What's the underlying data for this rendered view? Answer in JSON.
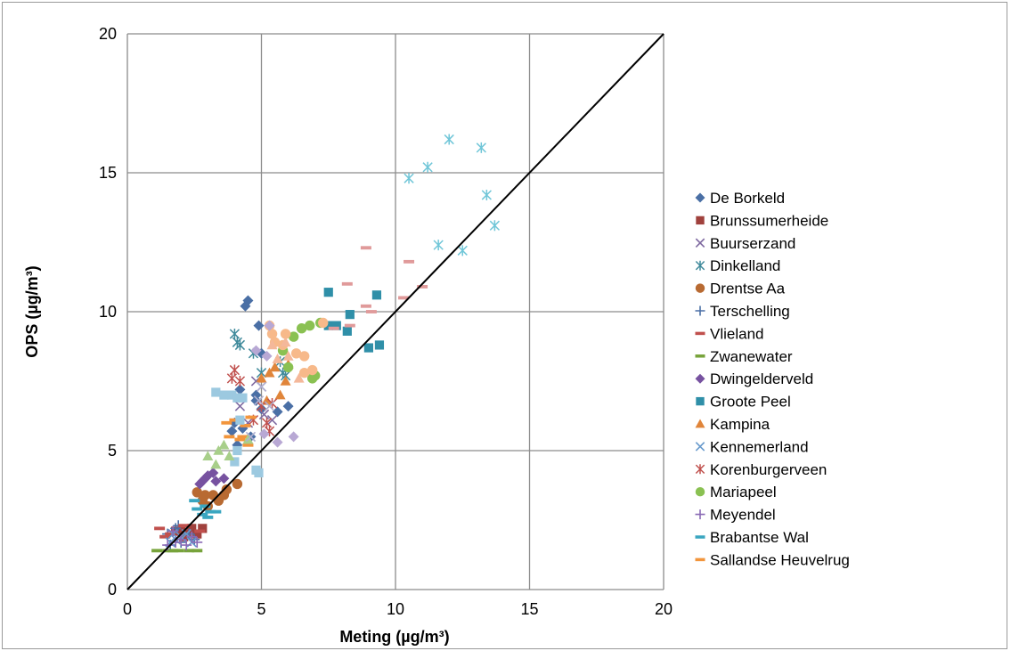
{
  "chart_data": {
    "type": "scatter",
    "title": "",
    "xlabel": "Meting (µg/m³)",
    "ylabel": "OPS (µg/m³)",
    "xlim": [
      0,
      20
    ],
    "ylim": [
      0,
      20
    ],
    "x_ticks": [
      "0",
      "5",
      "10",
      "15",
      "20"
    ],
    "y_ticks": [
      "0",
      "5",
      "10",
      "15",
      "20"
    ],
    "grid": true,
    "legend_position": "right",
    "reference_line": {
      "x": [
        0,
        20
      ],
      "y": [
        0,
        20
      ],
      "color": "#000000"
    },
    "series": [
      {
        "name": "De Borkeld",
        "marker": "diamond",
        "color": "#4a6fa5",
        "points": [
          [
            4.5,
            10.4
          ],
          [
            4.4,
            10.2
          ],
          [
            4.9,
            9.5
          ],
          [
            5.0,
            8.5
          ],
          [
            4.2,
            7.2
          ],
          [
            4.8,
            7.0
          ],
          [
            4.0,
            6.0
          ],
          [
            3.9,
            5.7
          ],
          [
            4.3,
            5.8
          ],
          [
            4.6,
            5.5
          ],
          [
            5.0,
            6.5
          ],
          [
            5.6,
            6.4
          ],
          [
            6.0,
            6.6
          ],
          [
            4.1,
            5.2
          ],
          [
            4.8,
            6.8
          ]
        ]
      },
      {
        "name": "Brunssumerheide",
        "marker": "square",
        "color": "#a0413d",
        "points": [
          [
            2.0,
            2.1
          ],
          [
            2.4,
            2.2
          ],
          [
            2.8,
            2.2
          ],
          [
            2.2,
            2.0
          ],
          [
            1.8,
            2.1
          ],
          [
            2.6,
            2.0
          ],
          [
            2.1,
            1.9
          ]
        ]
      },
      {
        "name": "Buurserzand",
        "marker": "x",
        "color": "#7f6aa1",
        "points": [
          [
            4.8,
            7.5
          ],
          [
            5.1,
            6.3
          ],
          [
            5.4,
            6.1
          ],
          [
            4.5,
            6.0
          ],
          [
            4.2,
            6.6
          ],
          [
            5.0,
            7.3
          ]
        ]
      },
      {
        "name": "Dinkelland",
        "marker": "star",
        "color": "#3f8a9b",
        "points": [
          [
            4.0,
            9.2
          ],
          [
            4.1,
            8.9
          ],
          [
            4.2,
            8.8
          ],
          [
            4.7,
            8.5
          ],
          [
            5.0,
            7.8
          ],
          [
            5.7,
            8.2
          ],
          [
            5.8,
            7.8
          ],
          [
            5.9,
            7.7
          ]
        ]
      },
      {
        "name": "Drentse Aa",
        "marker": "circle",
        "color": "#b86a32",
        "points": [
          [
            2.6,
            3.5
          ],
          [
            2.8,
            3.2
          ],
          [
            3.0,
            3.0
          ],
          [
            3.4,
            3.2
          ],
          [
            3.6,
            3.4
          ],
          [
            3.7,
            3.6
          ],
          [
            4.1,
            3.8
          ],
          [
            3.2,
            3.4
          ],
          [
            2.9,
            3.4
          ]
        ]
      },
      {
        "name": "Terschelling",
        "marker": "plus",
        "color": "#4a6fa5",
        "points": [
          [
            1.5,
            2.0
          ],
          [
            1.8,
            2.2
          ],
          [
            2.0,
            1.7
          ],
          [
            2.3,
            2.0
          ],
          [
            1.6,
            1.6
          ],
          [
            2.5,
            1.8
          ],
          [
            1.9,
            2.3
          ]
        ]
      },
      {
        "name": "Vlieland",
        "marker": "dash",
        "color": "#c0504d",
        "points": [
          [
            1.2,
            2.2
          ],
          [
            1.6,
            2.0
          ],
          [
            2.1,
            2.3
          ],
          [
            2.7,
            2.1
          ],
          [
            1.4,
            1.9
          ]
        ]
      },
      {
        "name": "Zwanewater",
        "marker": "dash",
        "color": "#77a33b",
        "points": [
          [
            1.1,
            1.4
          ],
          [
            1.5,
            1.4
          ],
          [
            1.9,
            1.4
          ],
          [
            2.3,
            1.4
          ],
          [
            2.6,
            1.4
          ],
          [
            1.7,
            1.4
          ]
        ]
      },
      {
        "name": "Dwingelderveld",
        "marker": "diamond",
        "color": "#7752a0",
        "points": [
          [
            2.8,
            3.9
          ],
          [
            2.9,
            4.0
          ],
          [
            3.0,
            4.1
          ],
          [
            3.3,
            3.9
          ],
          [
            3.6,
            4.0
          ],
          [
            3.2,
            4.2
          ],
          [
            2.7,
            3.8
          ]
        ]
      },
      {
        "name": "Groote Peel",
        "marker": "square",
        "color": "#2f8fa8",
        "points": [
          [
            7.5,
            10.7
          ],
          [
            9.3,
            10.6
          ],
          [
            8.3,
            9.9
          ],
          [
            7.5,
            9.5
          ],
          [
            8.2,
            9.3
          ],
          [
            9.0,
            8.7
          ],
          [
            9.4,
            8.8
          ],
          [
            7.8,
            9.5
          ]
        ]
      },
      {
        "name": "Kampina",
        "marker": "triangle",
        "color": "#e0853a",
        "points": [
          [
            5.0,
            7.6
          ],
          [
            5.3,
            7.8
          ],
          [
            5.7,
            7.0
          ],
          [
            5.5,
            8.0
          ],
          [
            6.0,
            8.1
          ],
          [
            5.2,
            6.8
          ],
          [
            5.9,
            7.5
          ]
        ]
      },
      {
        "name": "Kennemerland",
        "marker": "x",
        "color": "#6699cc",
        "points": [
          [
            1.6,
            1.7
          ],
          [
            1.8,
            1.8
          ],
          [
            2.0,
            1.9
          ],
          [
            2.2,
            2.0
          ],
          [
            1.7,
            2.0
          ],
          [
            2.4,
            1.7
          ]
        ]
      },
      {
        "name": "Korenburgerveen",
        "marker": "star",
        "color": "#c0504d",
        "points": [
          [
            3.9,
            7.6
          ],
          [
            4.0,
            7.9
          ],
          [
            4.2,
            7.5
          ],
          [
            5.0,
            6.6
          ],
          [
            5.2,
            6.0
          ],
          [
            5.4,
            6.7
          ],
          [
            5.3,
            5.7
          ],
          [
            4.7,
            6.1
          ]
        ]
      },
      {
        "name": "Mariapeel",
        "marker": "circle",
        "color": "#8ac152",
        "points": [
          [
            5.8,
            8.6
          ],
          [
            6.2,
            9.1
          ],
          [
            6.5,
            9.4
          ],
          [
            6.8,
            9.5
          ],
          [
            7.2,
            9.6
          ],
          [
            6.0,
            8.0
          ],
          [
            6.9,
            7.6
          ],
          [
            7.0,
            7.7
          ]
        ]
      },
      {
        "name": "Meyendel",
        "marker": "plus",
        "color": "#8a6ab5",
        "points": [
          [
            1.5,
            1.6
          ],
          [
            1.8,
            1.7
          ],
          [
            2.0,
            1.8
          ],
          [
            2.2,
            1.6
          ],
          [
            2.4,
            1.9
          ],
          [
            2.6,
            1.7
          ],
          [
            1.7,
            2.1
          ]
        ]
      },
      {
        "name": "Brabantse Wal",
        "marker": "dash",
        "color": "#3aa6c0",
        "points": [
          [
            2.5,
            3.2
          ],
          [
            2.9,
            3.0
          ],
          [
            3.1,
            2.8
          ],
          [
            3.3,
            2.8
          ],
          [
            2.8,
            2.7
          ],
          [
            3.0,
            2.6
          ],
          [
            2.6,
            2.9
          ]
        ]
      },
      {
        "name": "Sallandse Heuvelrug",
        "marker": "dash",
        "color": "#f2953c",
        "points": [
          [
            3.7,
            6.0
          ],
          [
            3.8,
            5.5
          ],
          [
            4.2,
            5.4
          ],
          [
            4.0,
            6.1
          ],
          [
            4.5,
            5.2
          ],
          [
            4.3,
            5.5
          ],
          [
            4.6,
            6.2
          ],
          [
            4.4,
            5.9
          ]
        ]
      },
      {
        "name": "",
        "marker": "star",
        "color": "#70c6d8",
        "points": [
          [
            12.0,
            16.2
          ],
          [
            13.2,
            15.9
          ],
          [
            11.2,
            15.2
          ],
          [
            10.5,
            14.8
          ],
          [
            13.4,
            14.2
          ],
          [
            13.7,
            13.1
          ],
          [
            11.6,
            12.4
          ],
          [
            12.5,
            12.2
          ]
        ]
      },
      {
        "name": "",
        "marker": "dash",
        "color": "#e09a9a",
        "points": [
          [
            8.9,
            12.3
          ],
          [
            10.5,
            11.8
          ],
          [
            8.2,
            11.0
          ],
          [
            11.0,
            10.9
          ],
          [
            10.3,
            10.5
          ],
          [
            8.9,
            10.2
          ],
          [
            9.1,
            10.0
          ],
          [
            7.7,
            9.4
          ],
          [
            8.3,
            9.5
          ]
        ]
      },
      {
        "name": "",
        "marker": "square",
        "color": "#9cc9e0",
        "points": [
          [
            3.3,
            7.1
          ],
          [
            3.6,
            7.0
          ],
          [
            3.9,
            7.0
          ],
          [
            4.1,
            6.9
          ],
          [
            4.2,
            6.1
          ],
          [
            4.1,
            5.0
          ],
          [
            4.0,
            4.6
          ],
          [
            4.8,
            4.3
          ],
          [
            4.9,
            4.2
          ],
          [
            4.3,
            6.9
          ]
        ]
      },
      {
        "name": "",
        "marker": "circle",
        "color": "#f7b98a",
        "points": [
          [
            5.3,
            9.5
          ],
          [
            5.4,
            9.2
          ],
          [
            5.8,
            8.8
          ],
          [
            5.9,
            9.2
          ],
          [
            6.3,
            8.5
          ],
          [
            6.6,
            8.4
          ],
          [
            7.3,
            9.6
          ],
          [
            6.6,
            7.8
          ],
          [
            6.9,
            7.9
          ],
          [
            5.5,
            8.9
          ]
        ]
      },
      {
        "name": "",
        "marker": "triangle",
        "color": "#a8cf8a",
        "points": [
          [
            3.0,
            4.8
          ],
          [
            3.4,
            5.0
          ],
          [
            3.8,
            4.8
          ],
          [
            4.5,
            5.4
          ],
          [
            3.3,
            4.5
          ],
          [
            3.6,
            5.2
          ]
        ]
      },
      {
        "name": "",
        "marker": "triangle",
        "color": "#f4b89a",
        "points": [
          [
            5.4,
            8.8
          ],
          [
            5.9,
            8.9
          ],
          [
            6.4,
            7.6
          ],
          [
            6.0,
            8.4
          ],
          [
            5.6,
            8.3
          ]
        ]
      },
      {
        "name": "",
        "marker": "diamond",
        "color": "#b8a8d4",
        "points": [
          [
            5.2,
            8.4
          ],
          [
            5.3,
            9.5
          ],
          [
            5.6,
            5.3
          ],
          [
            6.2,
            5.5
          ],
          [
            5.1,
            5.6
          ],
          [
            4.8,
            8.6
          ]
        ]
      },
      {
        "name": "",
        "marker": "x",
        "color": "#b0b0d0",
        "points": [
          [
            5.0,
            7.3
          ],
          [
            5.3,
            6.6
          ],
          [
            4.6,
            5.5
          ],
          [
            4.9,
            6.8
          ]
        ]
      }
    ]
  }
}
